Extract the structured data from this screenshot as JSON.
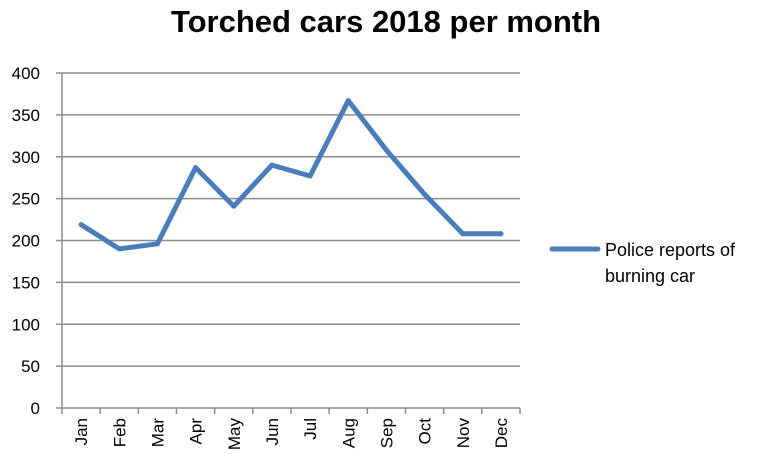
{
  "chart_data": {
    "type": "line",
    "title": "Torched cars 2018 per month",
    "xlabel": "",
    "ylabel": "",
    "ylim": [
      0,
      400
    ],
    "yticks": [
      0,
      50,
      100,
      150,
      200,
      250,
      300,
      350,
      400
    ],
    "grid": true,
    "legend_position": "right",
    "categories": [
      "Jan",
      "Feb",
      "Mar",
      "Apr",
      "May",
      "Jun",
      "Jul",
      "Aug",
      "Sep",
      "Oct",
      "Nov",
      "Dec"
    ],
    "series": [
      {
        "name": "Police reports of burning car",
        "legend_lines": [
          "Police reports of",
          "burning car"
        ],
        "color": "#4a7ebb",
        "values": [
          219,
          190,
          196,
          287,
          241,
          290,
          277,
          367,
          308,
          255,
          208,
          208
        ]
      }
    ]
  }
}
